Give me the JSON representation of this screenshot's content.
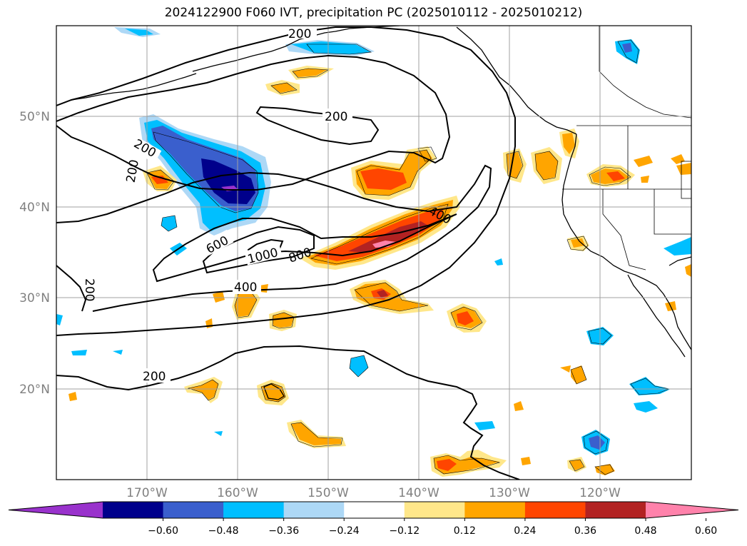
{
  "title": "2024122900 F060 IVT, precipitation PC (2025010112 - 2025010212)",
  "map": {
    "lon_range": [
      -180,
      -110
    ],
    "lat_range": [
      10,
      60
    ],
    "lat_labels": [
      "50°N",
      "40°N",
      "30°N",
      "20°N"
    ],
    "lon_labels": [
      "170°W",
      "160°W",
      "150°W",
      "140°W",
      "130°W",
      "120°W"
    ],
    "contour_labels": [
      "200",
      "200",
      "200",
      "200",
      "200",
      "400",
      "400",
      "600",
      "800",
      "1000"
    ]
  },
  "colorbar": {
    "ticks": [
      "−0.60",
      "−0.48",
      "−0.36",
      "−0.24",
      "−0.12",
      "0.12",
      "0.24",
      "0.36",
      "0.48",
      "0.60"
    ],
    "colors": [
      "#9932cc",
      "#00008b",
      "#3a5fcd",
      "#00bfff",
      "#add8f6",
      "#ffffff",
      "#ffe78a",
      "#ffa500",
      "#ff4500",
      "#b22222",
      "#ff82ab"
    ]
  }
}
